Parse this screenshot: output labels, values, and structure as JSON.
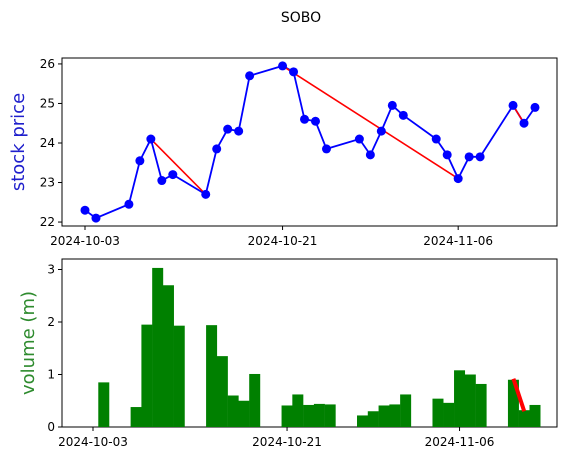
{
  "figure_title": "SOBO",
  "chart_data": [
    {
      "type": "line",
      "ylabel": "stock price",
      "ylabel_color": "#1f1fcc",
      "line_color": "#0000ff",
      "marker_color": "#0000ff",
      "trend_color": "#ff0000",
      "ylim": [
        21.9,
        26.15
      ],
      "yticks": [
        "22",
        "23",
        "24",
        "25",
        "26"
      ],
      "xticks": [
        "2024-10-03",
        "2024-10-21",
        "2024-11-06"
      ],
      "x": [
        "2024-10-03",
        "2024-10-04",
        "2024-10-07",
        "2024-10-08",
        "2024-10-09",
        "2024-10-10",
        "2024-10-11",
        "2024-10-14",
        "2024-10-15",
        "2024-10-16",
        "2024-10-17",
        "2024-10-18",
        "2024-10-21",
        "2024-10-22",
        "2024-10-23",
        "2024-10-24",
        "2024-10-25",
        "2024-10-28",
        "2024-10-29",
        "2024-10-30",
        "2024-10-31",
        "2024-11-01",
        "2024-11-04",
        "2024-11-05",
        "2024-11-06",
        "2024-11-07",
        "2024-11-08",
        "2024-11-11",
        "2024-11-12",
        "2024-11-13"
      ],
      "values": [
        22.3,
        22.1,
        22.45,
        23.55,
        24.1,
        23.05,
        23.2,
        22.7,
        23.85,
        24.35,
        24.3,
        25.7,
        25.95,
        25.8,
        24.6,
        24.55,
        23.85,
        24.1,
        23.7,
        24.3,
        24.95,
        24.7,
        24.1,
        23.7,
        23.1,
        23.65,
        23.65,
        24.95,
        24.5,
        24.9
      ],
      "trend_segments": [
        {
          "from": "2024-10-09",
          "to": "2024-10-14"
        },
        {
          "from": "2024-10-21",
          "to": "2024-11-06"
        },
        {
          "from": "2024-11-11",
          "to": "2024-11-12"
        }
      ]
    },
    {
      "type": "bar",
      "ylabel": "volume (m)",
      "ylabel_color": "#2e8b2e",
      "bar_color": "#008000",
      "trend_color": "#ff0000",
      "ylim": [
        0,
        3.2
      ],
      "yticks": [
        "0",
        "1",
        "2",
        "3"
      ],
      "xticks": [
        "2024-10-03",
        "2024-10-21",
        "2024-11-06"
      ],
      "x": [
        "2024-10-04",
        "2024-10-07",
        "2024-10-08",
        "2024-10-09",
        "2024-10-10",
        "2024-10-11",
        "2024-10-14",
        "2024-10-15",
        "2024-10-16",
        "2024-10-17",
        "2024-10-18",
        "2024-10-21",
        "2024-10-22",
        "2024-10-23",
        "2024-10-24",
        "2024-10-25",
        "2024-10-28",
        "2024-10-29",
        "2024-10-30",
        "2024-10-31",
        "2024-11-01",
        "2024-11-04",
        "2024-11-05",
        "2024-11-06",
        "2024-11-07",
        "2024-11-08",
        "2024-11-11",
        "2024-11-12",
        "2024-11-13"
      ],
      "values": [
        0.85,
        0.38,
        1.95,
        3.03,
        2.7,
        1.93,
        1.94,
        1.35,
        0.6,
        0.5,
        1.01,
        0.41,
        0.62,
        0.42,
        0.44,
        0.43,
        0.22,
        0.3,
        0.41,
        0.43,
        0.62,
        0.54,
        0.46,
        1.08,
        1.0,
        0.82,
        0.9,
        0.32,
        0.42
      ],
      "trend_segments": [
        {
          "from": "2024-11-11",
          "to": "2024-11-12",
          "y_from": 0.92,
          "y_to": 0.3
        }
      ]
    }
  ]
}
